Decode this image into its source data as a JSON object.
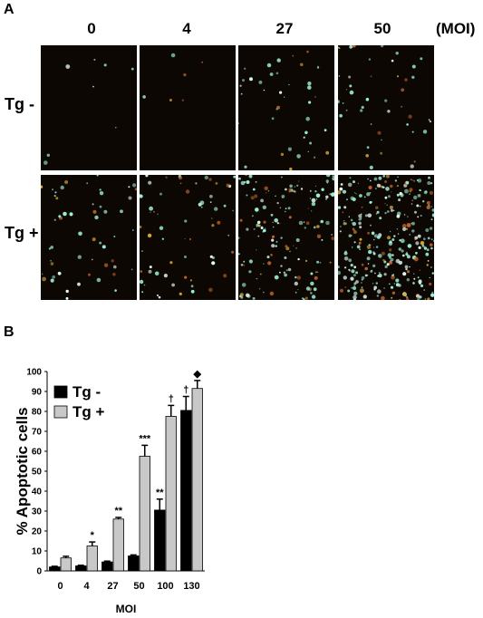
{
  "figure": {
    "panel_a_letter": "A",
    "panel_b_letter": "B",
    "columns": [
      "0",
      "4",
      "27",
      "50"
    ],
    "column_unit": "(MOI)",
    "rows": [
      "Tg -",
      "Tg +"
    ],
    "micrographs": [
      {
        "row": "Tg -",
        "moi": "0"
      },
      {
        "row": "Tg -",
        "moi": "4"
      },
      {
        "row": "Tg -",
        "moi": "27"
      },
      {
        "row": "Tg -",
        "moi": "50"
      },
      {
        "row": "Tg +",
        "moi": "0"
      },
      {
        "row": "Tg +",
        "moi": "4"
      },
      {
        "row": "Tg +",
        "moi": "27"
      },
      {
        "row": "Tg +",
        "moi": "50"
      }
    ]
  },
  "chart_data": {
    "type": "bar",
    "categories": [
      "0",
      "4",
      "27",
      "50",
      "100",
      "130"
    ],
    "xlabel": "MOI",
    "ylabel": "% Apoptotic cells",
    "ylim": [
      0,
      100
    ],
    "yticks": [
      0,
      10,
      20,
      30,
      40,
      50,
      60,
      70,
      80,
      90,
      100
    ],
    "legend_position": "top-left",
    "grid": false,
    "series": [
      {
        "name": "Tg -",
        "color": "#000000",
        "values": [
          2,
          2.5,
          4.5,
          7.5,
          30.5,
          80.5
        ],
        "errors": [
          0.3,
          0.3,
          0.4,
          0.5,
          5.5,
          7.0
        ],
        "annotations": [
          "",
          "",
          "",
          "",
          "**",
          "†"
        ]
      },
      {
        "name": "Tg +",
        "color": "#c8c8c8",
        "values": [
          6.5,
          12.5,
          26,
          57.5,
          77.5,
          91.5
        ],
        "errors": [
          0.8,
          2.0,
          0.8,
          5.5,
          5.5,
          4.0
        ],
        "annotations": [
          "",
          "*",
          "**",
          "***",
          "†",
          "◆"
        ]
      }
    ]
  }
}
